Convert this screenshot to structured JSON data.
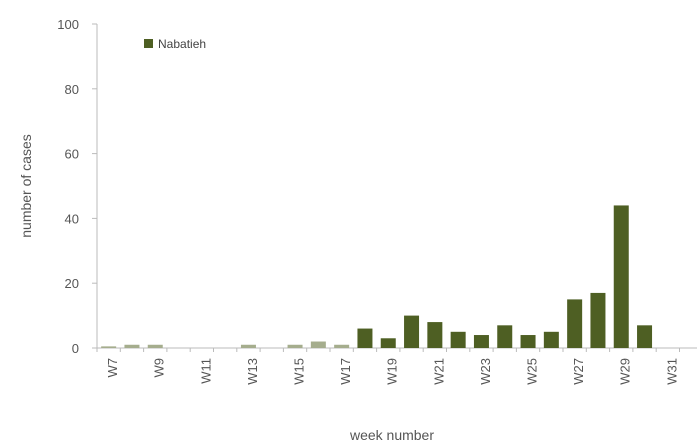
{
  "chart_data": {
    "type": "bar",
    "title": "",
    "xlabel": "week number",
    "ylabel": "number of cases",
    "ylim": [
      0,
      100
    ],
    "y_ticks": [
      0,
      20,
      40,
      60,
      80,
      100
    ],
    "categories": [
      "W7",
      "W8",
      "W9",
      "W10",
      "W11",
      "W12",
      "W13",
      "W14",
      "W15",
      "W16",
      "W17",
      "W18",
      "W19",
      "W20",
      "W21",
      "W22",
      "W23",
      "W24",
      "W25",
      "W26",
      "W27",
      "W28",
      "W29",
      "W30",
      "W31"
    ],
    "x_tick_labels": [
      "W7",
      "W9",
      "W11",
      "W13",
      "W15",
      "W17",
      "W19",
      "W21",
      "W23",
      "W25",
      "W27",
      "W29",
      "W31"
    ],
    "series": [
      {
        "name": "Nabatieh",
        "color": "#4e5f23",
        "values": [
          0.5,
          1,
          1,
          0,
          0,
          0,
          1,
          0,
          1,
          2,
          1,
          6,
          3,
          10,
          8,
          5,
          4,
          7,
          4,
          5,
          15,
          17,
          44,
          7,
          0
        ]
      }
    ],
    "legend_position": "top-left",
    "grid": false
  }
}
